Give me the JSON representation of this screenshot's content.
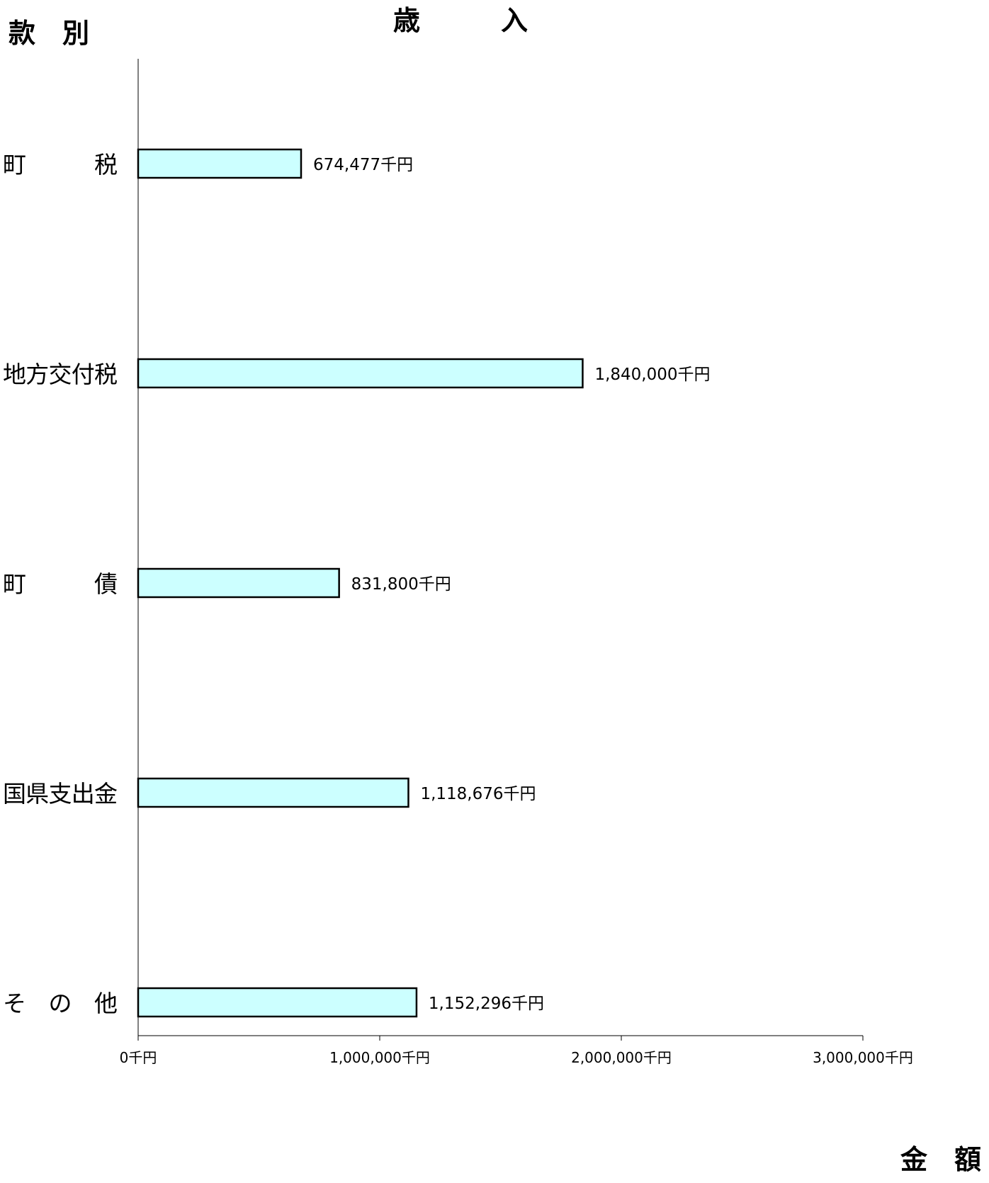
{
  "chart_data": {
    "type": "bar",
    "orientation": "horizontal",
    "title": "歳　　　入",
    "ylabel": "款　別",
    "xlabel": "金　額",
    "categories": [
      "町　　　税",
      "地方交付税",
      "町　　　債",
      "国県支出金",
      "そ　の　他"
    ],
    "values": [
      674477,
      1840000,
      831800,
      1118676,
      1152296
    ],
    "value_labels": [
      "674,477千円",
      "1,840,000千円",
      "831,800千円",
      "1,118,676千円",
      "1,152,296千円"
    ],
    "xlim": [
      0,
      3000000
    ],
    "x_ticks": [
      0,
      1000000,
      2000000,
      3000000
    ],
    "x_tick_labels": [
      "0千円",
      "1,000,000千円",
      "2,000,000千円",
      "3,000,000千円"
    ],
    "bar_color": "#ccffff",
    "bar_edge_color": "#000000",
    "grid": false,
    "legend": "none"
  }
}
